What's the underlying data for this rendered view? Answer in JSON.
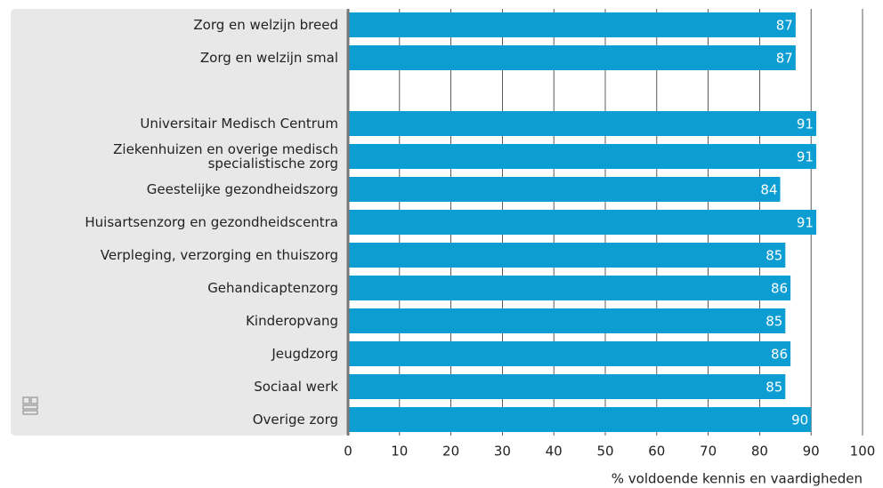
{
  "chart_data": {
    "type": "bar",
    "orientation": "horizontal",
    "categories": [
      "Zorg en welzijn breed",
      "Zorg en welzijn smal",
      null,
      "Universitair Medisch Centrum",
      "Ziekenhuizen en overige medisch\nspecialistische zorg",
      "Geestelijke gezondheidszorg",
      "Huisartsenzorg en gezondheidscentra",
      "Verpleging, verzorging en thuiszorg",
      "Gehandicaptenzorg",
      "Kinderopvang",
      "Jeugdzorg",
      "Sociaal werk",
      "Overige zorg"
    ],
    "values": [
      87,
      87,
      null,
      91,
      91,
      84,
      91,
      85,
      86,
      85,
      86,
      85,
      90
    ],
    "color": "#0c9dd3",
    "xlim": [
      0,
      100
    ],
    "xticks": [
      0,
      10,
      20,
      30,
      40,
      50,
      60,
      70,
      80,
      90,
      100
    ],
    "xlabel": "% voldoende kennis en vaardigheden",
    "grid": true
  }
}
